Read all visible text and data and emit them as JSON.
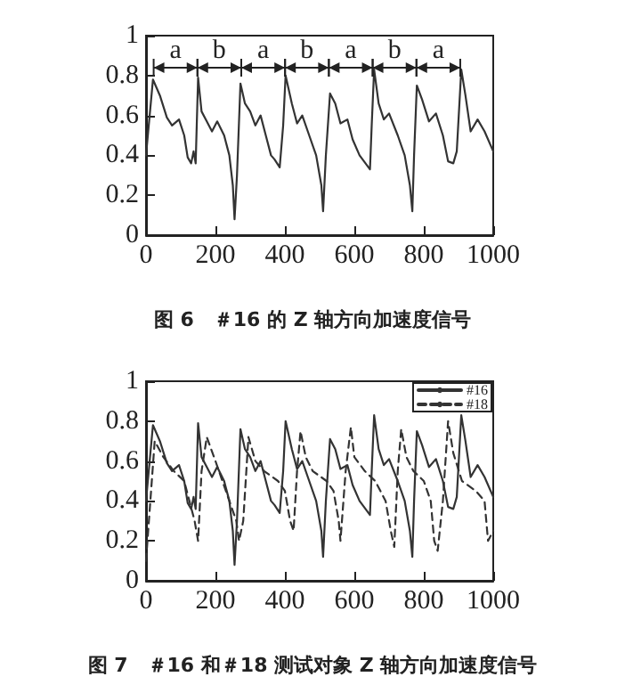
{
  "chart_data": [
    {
      "type": "line",
      "title": "图 6　＃16 的 Z 轴方向加速度信号",
      "x": [
        0,
        20,
        40,
        60,
        75,
        95,
        110,
        120,
        130,
        137,
        143,
        150,
        160,
        175,
        190,
        205,
        225,
        240,
        250,
        255,
        262,
        272,
        285,
        300,
        315,
        330,
        345,
        360,
        370,
        385,
        395,
        402,
        420,
        435,
        450,
        470,
        490,
        505,
        510,
        518,
        530,
        545,
        560,
        580,
        595,
        615,
        645,
        650,
        657,
        670,
        685,
        700,
        725,
        745,
        760,
        767,
        772,
        780,
        795,
        815,
        835,
        855,
        870,
        885,
        895,
        908,
        920,
        935,
        955,
        975,
        1000
      ],
      "series": [
        {
          "color": "#333333",
          "values": [
            0.4,
            0.78,
            0.7,
            0.59,
            0.55,
            0.58,
            0.5,
            0.39,
            0.36,
            0.42,
            0.36,
            0.79,
            0.62,
            0.57,
            0.52,
            0.57,
            0.5,
            0.4,
            0.25,
            0.08,
            0.3,
            0.76,
            0.66,
            0.62,
            0.55,
            0.6,
            0.5,
            0.4,
            0.38,
            0.34,
            0.55,
            0.8,
            0.66,
            0.56,
            0.6,
            0.5,
            0.4,
            0.25,
            0.12,
            0.4,
            0.71,
            0.66,
            0.56,
            0.58,
            0.48,
            0.4,
            0.33,
            0.55,
            0.83,
            0.66,
            0.58,
            0.61,
            0.5,
            0.4,
            0.25,
            0.12,
            0.4,
            0.75,
            0.68,
            0.57,
            0.61,
            0.5,
            0.37,
            0.36,
            0.42,
            0.83,
            0.7,
            0.52,
            0.58,
            0.52,
            0.42
          ]
        }
      ],
      "annotations": [
        "a",
        "b",
        "a",
        "b",
        "a",
        "b",
        "a"
      ],
      "xlim": [
        0,
        1000
      ],
      "xticks": [
        0,
        200,
        400,
        600,
        800,
        1000
      ],
      "ylim": [
        0,
        1
      ],
      "yticks": [
        0,
        0.2,
        0.4,
        0.6,
        0.8,
        1
      ],
      "line_style": "solid",
      "marker": "none",
      "grid": false,
      "legend": false
    },
    {
      "type": "line",
      "title": "图 7　＃16 和＃18 测试对象 Z 轴方向加速度信号",
      "series": [
        {
          "name": "#16",
          "color": "#333333",
          "line_style": "solid",
          "x": [
            0,
            20,
            40,
            60,
            75,
            95,
            110,
            120,
            130,
            137,
            143,
            150,
            160,
            175,
            190,
            205,
            225,
            240,
            250,
            255,
            262,
            272,
            285,
            300,
            315,
            330,
            345,
            360,
            370,
            385,
            395,
            402,
            420,
            435,
            450,
            470,
            490,
            505,
            510,
            518,
            530,
            545,
            560,
            580,
            595,
            615,
            645,
            650,
            657,
            670,
            685,
            700,
            725,
            745,
            760,
            767,
            772,
            780,
            795,
            815,
            835,
            855,
            870,
            885,
            895,
            908,
            920,
            935,
            955,
            975,
            1000
          ],
          "values": [
            0.4,
            0.78,
            0.7,
            0.59,
            0.55,
            0.58,
            0.5,
            0.39,
            0.36,
            0.42,
            0.36,
            0.79,
            0.62,
            0.57,
            0.52,
            0.57,
            0.5,
            0.4,
            0.25,
            0.08,
            0.3,
            0.76,
            0.66,
            0.62,
            0.55,
            0.6,
            0.5,
            0.4,
            0.38,
            0.34,
            0.55,
            0.8,
            0.66,
            0.56,
            0.6,
            0.5,
            0.4,
            0.25,
            0.12,
            0.4,
            0.71,
            0.66,
            0.56,
            0.58,
            0.48,
            0.4,
            0.33,
            0.55,
            0.83,
            0.66,
            0.58,
            0.61,
            0.5,
            0.4,
            0.25,
            0.12,
            0.4,
            0.75,
            0.68,
            0.57,
            0.61,
            0.5,
            0.37,
            0.36,
            0.42,
            0.83,
            0.7,
            0.52,
            0.58,
            0.52,
            0.42
          ]
        },
        {
          "name": "#18",
          "color": "#333333",
          "line_style": "dashed",
          "x": [
            0,
            25,
            50,
            80,
            110,
            125,
            140,
            150,
            160,
            175,
            200,
            220,
            240,
            260,
            268,
            280,
            295,
            315,
            340,
            380,
            400,
            415,
            425,
            435,
            445,
            460,
            480,
            520,
            540,
            555,
            560,
            575,
            590,
            600,
            630,
            660,
            690,
            705,
            715,
            725,
            735,
            750,
            770,
            800,
            820,
            830,
            840,
            855,
            870,
            885,
            910,
            950,
            975,
            985,
            1000
          ],
          "values": [
            0.1,
            0.7,
            0.62,
            0.55,
            0.5,
            0.4,
            0.3,
            0.2,
            0.55,
            0.72,
            0.6,
            0.5,
            0.4,
            0.3,
            0.2,
            0.3,
            0.72,
            0.6,
            0.55,
            0.5,
            0.45,
            0.3,
            0.25,
            0.55,
            0.75,
            0.62,
            0.55,
            0.5,
            0.45,
            0.3,
            0.2,
            0.55,
            0.77,
            0.62,
            0.55,
            0.5,
            0.4,
            0.25,
            0.17,
            0.55,
            0.76,
            0.62,
            0.55,
            0.5,
            0.4,
            0.2,
            0.15,
            0.4,
            0.8,
            0.64,
            0.5,
            0.45,
            0.4,
            0.2,
            0.25
          ]
        }
      ],
      "xlim": [
        0,
        1000
      ],
      "xticks": [
        0,
        200,
        400,
        600,
        800,
        1000
      ],
      "ylim": [
        0,
        1
      ],
      "yticks": [
        0,
        0.2,
        0.4,
        0.6,
        0.8,
        1
      ],
      "marker": "none",
      "grid": false,
      "legend": "top right"
    }
  ]
}
